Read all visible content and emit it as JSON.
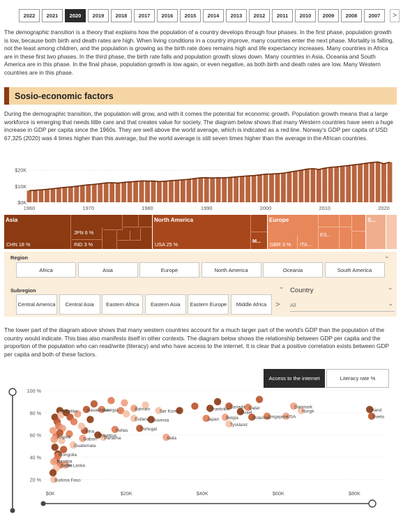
{
  "years": {
    "items": [
      "2022",
      "2021",
      "2020",
      "2019",
      "2018",
      "2017",
      "2016",
      "2015",
      "2014",
      "2013",
      "2012",
      "2011",
      "2010",
      "2009",
      "2008",
      "2007"
    ],
    "active": "2020",
    "next_icon": "chevron-right-icon",
    "next_glyph": ">"
  },
  "intro": {
    "lead": "The ",
    "term": "demographic transition",
    "text": " is a theory that explains how the population of a country develops through four phases. In the first phase, population growth is low, because both birth and death rates are high. When living conditions in a country improve, many countries enter the next phase. Mortality is falling, not the least among children, and the population is growing as the birth rate does remains high and life expectancy increases. Many countries in Africa are in these first two phases. In the third phase, the birth rate falls and population growth slows down. Many countries in Asia, Oceania and South America are in this phase. In the final phase, population growth is low again, or even negative, as both birth and death rates are low. Many Western countries are in this phase."
  },
  "section": {
    "title": "Sosio-economic factors"
  },
  "paragraph2": "During the demographic transition, the population will grow, and with it comes the potential for economic growth. Population growth means that a large workforce is emerging that needs little care and that creates value for society. The diagram below shows that many Western countries have seen a huge increase in GDP per capita since the 1960s. They are well above the world average, which is indicated as a red line. Norway's GDP per capita of USD 67,325 (2020) was 4 times higher than this average, but the world average is still seven times higher than the average in the African countries.",
  "paragraph3": "The lower part of the diagram above shows that many western countries account for a much larger part of the world's GDP than the population of the country would indicate. This bias also manifests itself in other contexts. The diagram below shows the relationship between GDP per capita and the proportion of the population who can read/write (literacy) and who have access to the internet. It is clear that a positive correlation exists between GDP per capita and both of these factors.",
  "treemap": {
    "asia": "Asia",
    "chn": "CHN 18 %",
    "jpn": "JPN 6 %",
    "ind": "IND 3 %",
    "na": "North America",
    "usa": "USA 25 %",
    "m": "M...",
    "europe": "Europe",
    "gbr": "GBR 3 %",
    "ita": "ITA ...",
    "es": "ES...",
    "s": "S...",
    "colors": {
      "asia": "#8b3a12",
      "na": "#a8471b",
      "europe": "#e8875a",
      "s": "#f0ae8e"
    }
  },
  "filters": {
    "region_label": "Region",
    "regions": [
      "Africa",
      "Asia",
      "Europe",
      "North America",
      "Oceania",
      "South America"
    ],
    "subregion_label": "Subregion",
    "subregions": [
      "Central America",
      "Central Asia",
      "Eastern Africa",
      "Eastern Asia",
      "Eastern Europe",
      "Middle Africa"
    ],
    "country_label": "Country",
    "country_value": "All",
    "chevron_glyph": "⌄",
    "next_glyph": ">"
  },
  "toggles": {
    "internet": "Access to the internet",
    "literacy": "Literacy rate %"
  },
  "chart_data": [
    {
      "type": "bar",
      "title": "",
      "x": [
        1960,
        1961,
        1962,
        1963,
        1964,
        1965,
        1966,
        1967,
        1968,
        1969,
        1970,
        1971,
        1972,
        1973,
        1974,
        1975,
        1976,
        1977,
        1978,
        1979,
        1980,
        1981,
        1982,
        1983,
        1984,
        1985,
        1986,
        1987,
        1988,
        1989,
        1990,
        1991,
        1992,
        1993,
        1994,
        1995,
        1996,
        1997,
        1998,
        1999,
        2000,
        2001,
        2002,
        2003,
        2004,
        2005,
        2006,
        2007,
        2008,
        2009,
        2010,
        2011,
        2012,
        2013,
        2014,
        2015,
        2016,
        2017,
        2018,
        2019,
        2020,
        2021
      ],
      "values": [
        7200,
        7400,
        7700,
        8000,
        8400,
        8800,
        9200,
        9500,
        9900,
        10400,
        10800,
        11100,
        11500,
        12000,
        12100,
        11900,
        12300,
        12600,
        12900,
        13200,
        13100,
        13100,
        12800,
        13000,
        13400,
        13600,
        13900,
        14200,
        14700,
        15100,
        15200,
        15000,
        15100,
        15100,
        15400,
        15700,
        16000,
        16300,
        16500,
        16900,
        17400,
        17500,
        17700,
        18000,
        18600,
        19200,
        19800,
        20500,
        20800,
        20300,
        21100,
        21600,
        21900,
        22300,
        22700,
        23200,
        23600,
        24100,
        24600,
        24900,
        23800,
        24800
      ],
      "line": {
        "name": "",
        "values": [
          7200,
          7400,
          7700,
          8000,
          8400,
          8800,
          9200,
          9500,
          9900,
          10400,
          10800,
          11100,
          11500,
          12000,
          12100,
          11900,
          12300,
          12600,
          12900,
          13200,
          13100,
          13100,
          12800,
          13000,
          13400,
          13600,
          13900,
          14200,
          14700,
          15100,
          15200,
          15000,
          15100,
          15100,
          15400,
          15700,
          16000,
          16300,
          16500,
          16900,
          17400,
          17500,
          17700,
          18000,
          18600,
          19200,
          19800,
          20500,
          20800,
          20300,
          21100,
          21600,
          21900,
          22300,
          22700,
          23200,
          23600,
          24100,
          24600,
          24900,
          23800,
          24800
        ]
      },
      "xticks": [
        1960,
        1970,
        1980,
        1990,
        2000,
        2010,
        2020
      ],
      "yticks": [
        {
          "v": 0,
          "label": "$0K"
        },
        {
          "v": 10000,
          "label": "$10K"
        },
        {
          "v": 20000,
          "label": "$20K"
        }
      ],
      "ylim": [
        0,
        25000
      ],
      "bar_color": "#b8653f",
      "line_color": "#6b2a0a"
    },
    {
      "type": "scatter",
      "title": "",
      "xlabel": "",
      "ylabel": "",
      "xlim": [
        -1500,
        88000
      ],
      "ylim": [
        14,
        100
      ],
      "xticks": [
        {
          "v": 0,
          "label": "$0K"
        },
        {
          "v": 20000,
          "label": "$20K"
        },
        {
          "v": 40000,
          "label": "$40K"
        },
        {
          "v": 60000,
          "label": "$60K"
        },
        {
          "v": 80000,
          "label": "$80K"
        }
      ],
      "yticks": [
        {
          "v": 20,
          "label": "20 %"
        },
        {
          "v": 40,
          "label": "40 %"
        },
        {
          "v": 60,
          "label": "60 %"
        },
        {
          "v": 80,
          "label": "80 %"
        },
        {
          "v": 100,
          "label": "100 %"
        }
      ],
      "points": [
        {
          "x": 2500,
          "y": 82,
          "label": "Marokko"
        },
        {
          "x": 9500,
          "y": 83,
          "label": "Kasakhstan"
        },
        {
          "x": 13500,
          "y": 83,
          "label": "Georgia"
        },
        {
          "x": 22000,
          "y": 84,
          "label": "Bahrain"
        },
        {
          "x": 28500,
          "y": 82,
          "label": "Sør Korea"
        },
        {
          "x": 42000,
          "y": 84,
          "label": "Frankrike"
        },
        {
          "x": 47000,
          "y": 86,
          "label": "Canada"
        },
        {
          "x": 52000,
          "y": 85,
          "label": "Qatar"
        },
        {
          "x": 64000,
          "y": 86,
          "label": "Danmark"
        },
        {
          "x": 66000,
          "y": 82,
          "label": "Norge"
        },
        {
          "x": 84000,
          "y": 83,
          "label": "Irland"
        },
        {
          "x": 84500,
          "y": 77,
          "label": "Sveits"
        },
        {
          "x": 41000,
          "y": 75,
          "label": "Japan"
        },
        {
          "x": 46000,
          "y": 76,
          "label": "Belgia"
        },
        {
          "x": 47000,
          "y": 70,
          "label": "Tyskland"
        },
        {
          "x": 50000,
          "y": 81,
          "label": "Israel"
        },
        {
          "x": 53000,
          "y": 76,
          "label": "Østerrike"
        },
        {
          "x": 57000,
          "y": 77,
          "label": "Singapore"
        },
        {
          "x": 62000,
          "y": 77,
          "label": "USA"
        },
        {
          "x": 22000,
          "y": 75,
          "label": "Estland"
        },
        {
          "x": 26500,
          "y": 74,
          "label": "Slovenia"
        },
        {
          "x": 23500,
          "y": 66,
          "label": "Portugal"
        },
        {
          "x": 17000,
          "y": 65,
          "label": "Hellas"
        },
        {
          "x": 30500,
          "y": 58,
          "label": "Italia"
        },
        {
          "x": 14000,
          "y": 58,
          "label": "Panama"
        },
        {
          "x": 12500,
          "y": 60,
          "label": "Mauritius"
        },
        {
          "x": 9000,
          "y": 64,
          "label": "Kina"
        },
        {
          "x": 1500,
          "y": 59,
          "label": "Angola"
        },
        {
          "x": 8500,
          "y": 57,
          "label": "Gabon"
        },
        {
          "x": 6000,
          "y": 51,
          "label": "Guatemala"
        },
        {
          "x": 2000,
          "y": 43,
          "label": "Mongolia"
        },
        {
          "x": 1500,
          "y": 37,
          "label": "Nambia"
        },
        {
          "x": 2600,
          "y": 33,
          "label": "Benin"
        },
        {
          "x": 4000,
          "y": 33,
          "label": "Sri Lanka"
        },
        {
          "x": 900,
          "y": 20,
          "label": "Burkina Faso"
        },
        {
          "x": 1200,
          "y": 76,
          "label": ""
        },
        {
          "x": 1800,
          "y": 72,
          "label": ""
        },
        {
          "x": 2200,
          "y": 68,
          "label": ""
        },
        {
          "x": 3200,
          "y": 66,
          "label": ""
        },
        {
          "x": 2800,
          "y": 78,
          "label": ""
        },
        {
          "x": 4200,
          "y": 80,
          "label": ""
        },
        {
          "x": 5200,
          "y": 76,
          "label": ""
        },
        {
          "x": 6200,
          "y": 72,
          "label": ""
        },
        {
          "x": 7200,
          "y": 79,
          "label": ""
        },
        {
          "x": 8200,
          "y": 68,
          "label": ""
        },
        {
          "x": 10500,
          "y": 74,
          "label": ""
        },
        {
          "x": 11500,
          "y": 88,
          "label": ""
        },
        {
          "x": 16000,
          "y": 91,
          "label": ""
        },
        {
          "x": 19500,
          "y": 89,
          "label": ""
        },
        {
          "x": 25000,
          "y": 87,
          "label": ""
        },
        {
          "x": 44000,
          "y": 90,
          "label": ""
        },
        {
          "x": 55000,
          "y": 92,
          "label": ""
        },
        {
          "x": 18500,
          "y": 82,
          "label": ""
        },
        {
          "x": 1000,
          "y": 56,
          "label": ""
        },
        {
          "x": 3000,
          "y": 55,
          "label": ""
        },
        {
          "x": 1200,
          "y": 49,
          "label": ""
        },
        {
          "x": 3500,
          "y": 47,
          "label": ""
        },
        {
          "x": 2000,
          "y": 41,
          "label": ""
        },
        {
          "x": 900,
          "y": 36,
          "label": ""
        },
        {
          "x": 1500,
          "y": 30,
          "label": ""
        },
        {
          "x": 700,
          "y": 26,
          "label": ""
        },
        {
          "x": 2500,
          "y": 62,
          "label": ""
        },
        {
          "x": 5000,
          "y": 61,
          "label": ""
        },
        {
          "x": 700,
          "y": 64,
          "label": ""
        },
        {
          "x": 20000,
          "y": 79,
          "label": ""
        },
        {
          "x": 34000,
          "y": 82,
          "label": ""
        },
        {
          "x": 38000,
          "y": 86,
          "label": ""
        }
      ],
      "colors": [
        "#8b3a12",
        "#b9532a",
        "#e07b52",
        "#eea07f",
        "#f4c1a6"
      ]
    }
  ]
}
